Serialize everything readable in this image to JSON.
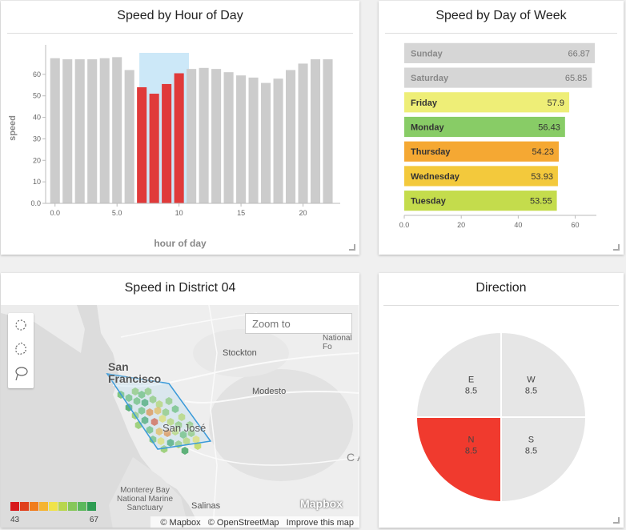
{
  "hour_chart": {
    "title": "Speed by Hour of Day",
    "chart_data": {
      "type": "bar",
      "title": "Speed by Hour of Day",
      "xlabel": "hour of day",
      "ylabel": "speed",
      "x": [
        0,
        1,
        2,
        3,
        4,
        5,
        6,
        7,
        8,
        9,
        10,
        11,
        12,
        13,
        14,
        15,
        16,
        17,
        18,
        19,
        20,
        21,
        22
      ],
      "values": [
        67.5,
        67,
        67,
        67,
        67.5,
        68,
        62,
        54,
        51,
        55.5,
        60.5,
        62.5,
        63,
        62.5,
        61,
        59.5,
        58.5,
        56,
        58,
        62,
        65,
        67,
        67
      ],
      "highlighted": [
        7,
        8,
        9,
        10
      ],
      "selection": [
        6.8,
        10.8
      ],
      "ylim": [
        0,
        70
      ],
      "xlim": [
        -0.5,
        23
      ],
      "y_ticks": [
        "0.0",
        "10",
        "20",
        "30",
        "40",
        "50",
        "60"
      ],
      "x_ticks": [
        "0.0",
        "5.0",
        "10",
        "15",
        "20"
      ],
      "colors": {
        "default": "#cccccc",
        "highlight": "#e03a3a",
        "selection": "#cce8f8"
      }
    }
  },
  "day_chart": {
    "title": "Speed by Day of Week",
    "chart_data": {
      "type": "bar",
      "orientation": "horizontal",
      "title": "Speed by Day of Week",
      "categories": [
        "Sunday",
        "Saturday",
        "Friday",
        "Monday",
        "Thursday",
        "Wednesday",
        "Tuesday"
      ],
      "values": [
        66.87,
        65.85,
        57.9,
        56.43,
        54.23,
        53.93,
        53.55
      ],
      "labels": [
        "66.87",
        "65.85",
        "57.9",
        "56.43",
        "54.23",
        "53.93",
        "53.55"
      ],
      "colors": [
        "#d6d6d6",
        "#d6d6d6",
        "#eeee77",
        "#88cc66",
        "#f5a833",
        "#f3c93c",
        "#c4dc4c"
      ],
      "xlim": [
        0,
        66.87
      ],
      "x_ticks": [
        "0.0",
        "20",
        "40",
        "60"
      ]
    }
  },
  "map_panel": {
    "title": "Speed in District 04",
    "zoom_placeholder": "Zoom to",
    "places": {
      "san_francisco": "San\nFrancisco",
      "san_jose": "San José",
      "stockton": "Stockton",
      "modesto": "Modesto",
      "national_forest": "National Fo",
      "monterey": "Monterey Bay\nNational Marine\nSanctuary",
      "salinas": "Salinas",
      "ca": "CA"
    },
    "legend": {
      "min": "43",
      "max": "67",
      "colors": [
        "#d7191c",
        "#e0401c",
        "#f07d1e",
        "#f5b431",
        "#f0e34a",
        "#b8d64e",
        "#86c75a",
        "#5cb85c",
        "#2e9c52"
      ]
    },
    "mapbox_logo": "Mapbox",
    "attribution": [
      "© Mapbox",
      "© OpenStreetMap",
      "Improve this map"
    ],
    "tool_icons": [
      "circle-select-icon",
      "polygon-select-icon",
      "lasso-select-icon"
    ]
  },
  "direction_chart": {
    "title": "Direction",
    "chart_data": {
      "type": "pie",
      "title": "Direction",
      "slices": [
        {
          "label": "W",
          "value": 8.5,
          "display": "8.5",
          "color": "#e6e6e6"
        },
        {
          "label": "S",
          "value": 8.5,
          "display": "8.5",
          "color": "#e6e6e6"
        },
        {
          "label": "N",
          "value": 8.5,
          "display": "8.5",
          "color": "#f03a2e"
        },
        {
          "label": "E",
          "value": 8.5,
          "display": "8.5",
          "color": "#e6e6e6"
        }
      ]
    }
  }
}
